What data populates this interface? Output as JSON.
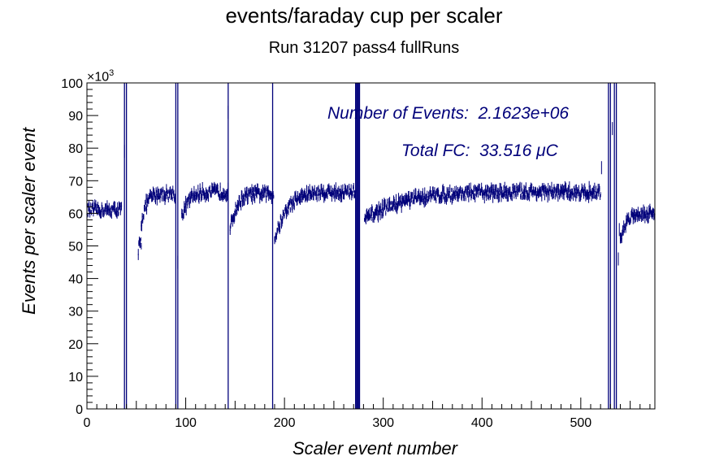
{
  "title": "events/faraday cup per scaler",
  "subtitle": "Run 31207 pass4 fullRuns",
  "annotations": {
    "events_label": "Number of Events:",
    "events_value": "2.1623e+06",
    "fc_label": "Total FC:",
    "fc_value": "33.516",
    "fc_unit": "μC"
  },
  "colors": {
    "data": "#00007a",
    "axes": "#000000"
  },
  "chart_data": {
    "type": "scatter",
    "title": "events/faraday cup per scaler",
    "xlabel": "Scaler event number",
    "ylabel": "Events per scaler event",
    "y_multiplier_label": "×10",
    "y_multiplier_exp": "3",
    "xlim": [
      0,
      575
    ],
    "ylim": [
      0,
      100
    ],
    "x_ticks": [
      0,
      100,
      200,
      300,
      400,
      500
    ],
    "y_ticks": [
      0,
      10,
      20,
      30,
      40,
      50,
      60,
      70,
      80,
      90,
      100
    ],
    "grid": false,
    "series": [
      {
        "segments": [
          {
            "x": [
              0,
              35
            ],
            "y_start": 61,
            "y_end": 61,
            "noise": 1.6
          },
          {
            "x": [
              52,
              55
            ],
            "y_start": 47,
            "y_end": 51,
            "noise": 1.5
          },
          {
            "x": [
              55,
              89
            ],
            "y_start": 57,
            "y_end": 66,
            "noise": 1.8
          },
          {
            "x": [
              96,
              143
            ],
            "y_start": 59,
            "y_end": 66.5,
            "noise": 1.7
          },
          {
            "x": [
              145,
              189
            ],
            "y_start": 55,
            "y_end": 66,
            "noise": 1.7
          },
          {
            "x": [
              190,
              272
            ],
            "y_start": 52,
            "y_end": 66.5,
            "noise": 1.7
          },
          {
            "x": [
              281,
              520
            ],
            "y_start": 58,
            "y_end": 66.5,
            "noise": 1.7
          },
          {
            "x": [
              540,
              575
            ],
            "y_start": 51,
            "y_end": 60,
            "noise": 1.5
          }
        ],
        "vertical_lines": [
          38,
          40,
          90,
          92,
          143,
          188,
          272,
          273,
          274,
          275,
          276,
          528,
          530,
          534,
          536
        ],
        "isolated_points": [
          {
            "x": 0,
            "y": 23.5
          },
          {
            "x": 38,
            "y": 79
          },
          {
            "x": 92,
            "y": 45
          },
          {
            "x": 143,
            "y": 91
          },
          {
            "x": 521,
            "y": 74
          },
          {
            "x": 532,
            "y": 86
          },
          {
            "x": 538,
            "y": 46
          },
          {
            "x": 539,
            "y": 55
          }
        ]
      }
    ]
  }
}
